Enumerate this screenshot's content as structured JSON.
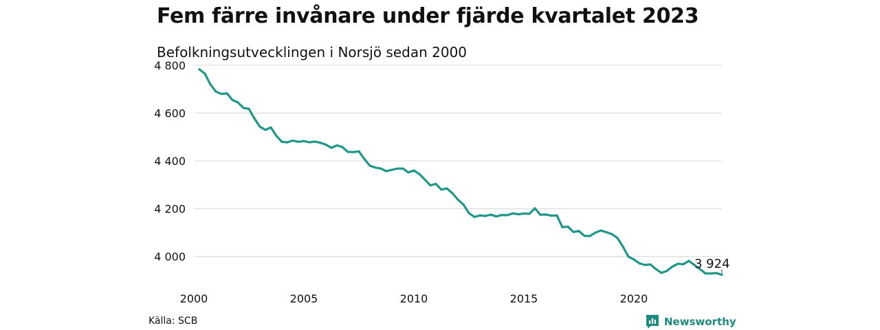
{
  "title": "Fem färre invånare under fjärde kvartalet 2023",
  "subtitle": "Befolkningsutvecklingen i Norsjö sedan 2000",
  "source": "Källa: SCB",
  "brand": {
    "name": "Newsworthy",
    "icon": "newsworthy-logo-icon"
  },
  "colors": {
    "line": "#1e9688",
    "grid": "#dddddd",
    "brand": "#1e8a80"
  },
  "chart_data": {
    "type": "line",
    "grid": true,
    "legend": "none",
    "xlim": [
      2000,
      2024
    ],
    "ylim": [
      3900,
      4820
    ],
    "yticks": [
      4000,
      4200,
      4400,
      4600,
      4800
    ],
    "ytick_labels": [
      "4 000",
      "4 200",
      "4 400",
      "4 600",
      "4 800"
    ],
    "xticks": [
      2000,
      2005,
      2010,
      2015,
      2020
    ],
    "xtick_labels": [
      "2000",
      "2005",
      "2010",
      "2015",
      "2020"
    ],
    "end_label": "3 924",
    "series": [
      {
        "x": [
          2000.25,
          2000.5,
          2000.75,
          2001,
          2001.25,
          2001.5,
          2001.75,
          2002,
          2002.25,
          2002.5,
          2002.75,
          2003,
          2003.25,
          2003.5,
          2003.75,
          2004,
          2004.25,
          2004.5,
          2004.75,
          2005,
          2005.25,
          2005.5,
          2005.75,
          2006,
          2006.25,
          2006.5,
          2006.75,
          2007,
          2007.25,
          2007.5,
          2007.75,
          2008,
          2008.25,
          2008.5,
          2008.75,
          2009,
          2009.25,
          2009.5,
          2009.75,
          2010,
          2010.25,
          2010.5,
          2010.75,
          2011,
          2011.25,
          2011.5,
          2011.75,
          2012,
          2012.25,
          2012.5,
          2012.75,
          2013,
          2013.25,
          2013.5,
          2013.75,
          2014,
          2014.25,
          2014.5,
          2014.75,
          2015,
          2015.25,
          2015.5,
          2015.75,
          2016,
          2016.25,
          2016.5,
          2016.75,
          2017,
          2017.25,
          2017.5,
          2017.75,
          2018,
          2018.25,
          2018.5,
          2018.75,
          2019,
          2019.25,
          2019.5,
          2019.75,
          2020,
          2020.25,
          2020.5,
          2020.75,
          2021,
          2021.25,
          2021.5,
          2021.75,
          2022,
          2022.25,
          2022.5,
          2022.75,
          2023,
          2023.25,
          2023.5,
          2023.75,
          2024
        ],
        "y": [
          4783,
          4765,
          4720,
          4690,
          4680,
          4683,
          4655,
          4645,
          4622,
          4618,
          4578,
          4543,
          4530,
          4540,
          4505,
          4480,
          4478,
          4485,
          4480,
          4483,
          4478,
          4481,
          4476,
          4468,
          4455,
          4465,
          4458,
          4438,
          4437,
          4440,
          4408,
          4380,
          4372,
          4368,
          4357,
          4363,
          4368,
          4368,
          4352,
          4360,
          4345,
          4322,
          4298,
          4304,
          4280,
          4285,
          4265,
          4238,
          4218,
          4182,
          4166,
          4172,
          4170,
          4175,
          4168,
          4174,
          4173,
          4181,
          4177,
          4180,
          4179,
          4202,
          4175,
          4176,
          4171,
          4172,
          4123,
          4125,
          4103,
          4107,
          4087,
          4086,
          4100,
          4109,
          4102,
          4094,
          4078,
          4042,
          4000,
          3988,
          3972,
          3965,
          3967,
          3948,
          3932,
          3940,
          3958,
          3970,
          3968,
          3982,
          3965,
          3948,
          3930,
          3929,
          3931,
          3924
        ]
      }
    ]
  }
}
